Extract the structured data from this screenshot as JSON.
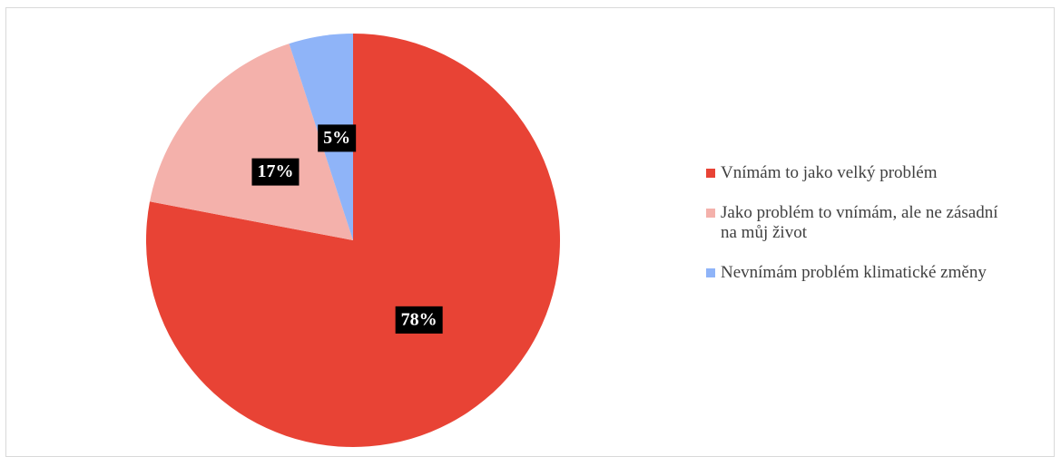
{
  "chart_data": {
    "type": "pie",
    "categories": [
      "Vnímám to jako velký problém",
      "Jako problém to vnímám, ale ne zásadní na můj život",
      "Nevnímám problém klimatické změny"
    ],
    "values": [
      78,
      17,
      5
    ],
    "value_labels": [
      "78%",
      "17%",
      "5%"
    ],
    "colors": [
      "#e84335",
      "#f4b1ab",
      "#8fb4f8"
    ],
    "legend": "right"
  }
}
